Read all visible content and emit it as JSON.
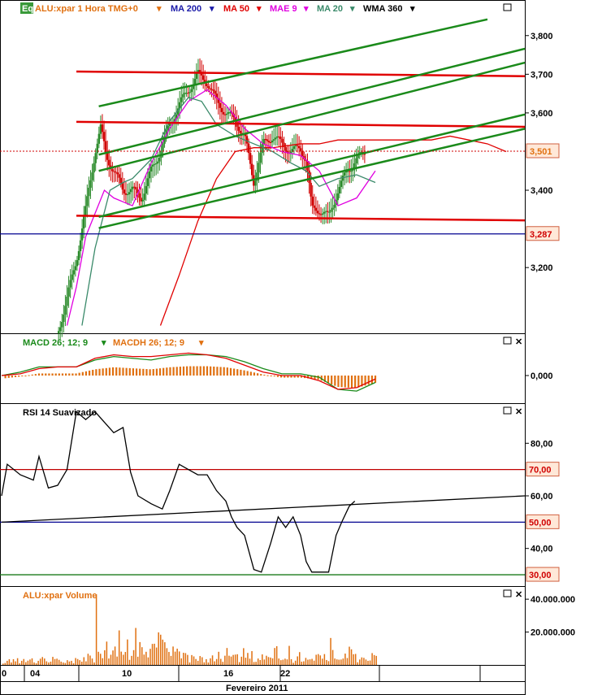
{
  "header": {
    "badge": "Eq",
    "symbol": "ALU:xpar 1 Hora TMG+0",
    "indicators": [
      {
        "label": "MA 200",
        "color": "#1a1aa8"
      },
      {
        "label": "MA 50",
        "color": "#e00000"
      },
      {
        "label": "MAE 9",
        "color": "#e000e0"
      },
      {
        "label": "MA 20",
        "color": "#3a8a6a"
      },
      {
        "label": "WMA 360",
        "color": "#000000"
      }
    ]
  },
  "panels": {
    "macd": {
      "labels": [
        "MACD 26; 12; 9",
        "MACDH 26; 12; 9"
      ],
      "colors": [
        "#1a8a1a",
        "#e07010"
      ]
    },
    "rsi": {
      "label": "RSI 14 Suavizado"
    },
    "volume": {
      "label": "ALU:xpar Volume"
    }
  },
  "colors": {
    "up": "#2a8a2a",
    "down": "#d00000",
    "histogram": "#e07010",
    "volume": "#e07010"
  },
  "chart_data": [
    {
      "type": "candlestick",
      "panel": "price",
      "ylim": [
        3.03,
        3.85
      ],
      "yticks": [
        "3,200",
        "3,400",
        "3,600",
        "3,700",
        "3,800"
      ],
      "price_tags": [
        "3,501",
        "3,287"
      ],
      "price_levels": [
        3.501,
        3.287
      ],
      "overlays": [
        {
          "name": "MA 50",
          "points": [
            [
              8.5,
              3.05
            ],
            [
              9.5,
              3.18
            ],
            [
              10.5,
              3.32
            ],
            [
              11.5,
              3.43
            ],
            [
              12.5,
              3.5
            ],
            [
              13.5,
              3.51
            ],
            [
              14.5,
              3.51
            ],
            [
              16,
              3.52
            ],
            [
              17,
              3.52
            ],
            [
              18,
              3.53
            ],
            [
              19,
              3.53
            ],
            [
              20,
              3.53
            ],
            [
              21,
              3.53
            ],
            [
              22,
              3.53
            ],
            [
              23,
              3.53
            ],
            [
              24,
              3.54
            ],
            [
              25,
              3.53
            ],
            [
              26,
              3.52
            ],
            [
              27,
              3.5
            ]
          ]
        },
        {
          "name": "MAE 9",
          "points": [
            [
              3.5,
              3.05
            ],
            [
              4,
              3.15
            ],
            [
              4.5,
              3.28
            ],
            [
              5.5,
              3.4
            ],
            [
              6,
              3.38
            ],
            [
              7,
              3.36
            ],
            [
              8,
              3.47
            ],
            [
              9,
              3.56
            ],
            [
              10,
              3.63
            ],
            [
              11,
              3.66
            ],
            [
              12,
              3.62
            ],
            [
              13,
              3.56
            ],
            [
              14,
              3.52
            ],
            [
              15,
              3.5
            ],
            [
              16,
              3.49
            ],
            [
              17,
              3.45
            ],
            [
              18,
              3.36
            ],
            [
              19,
              3.38
            ],
            [
              20,
              3.45
            ]
          ]
        },
        {
          "name": "MA 20",
          "points": [
            [
              4.3,
              3.05
            ],
            [
              5,
              3.25
            ],
            [
              5.8,
              3.4
            ],
            [
              6.5,
              3.42
            ],
            [
              7,
              3.43
            ],
            [
              8,
              3.48
            ],
            [
              9,
              3.58
            ],
            [
              10,
              3.64
            ],
            [
              10.7,
              3.63
            ],
            [
              11.5,
              3.57
            ],
            [
              12.5,
              3.54
            ],
            [
              13.5,
              3.52
            ],
            [
              14.5,
              3.5
            ],
            [
              15.5,
              3.47
            ],
            [
              16.3,
              3.45
            ],
            [
              17,
              3.41
            ],
            [
              18,
              3.43
            ],
            [
              19,
              3.44
            ],
            [
              20,
              3.42
            ]
          ]
        }
      ],
      "trendlines": [
        {
          "color": "red",
          "from": [
            4.0,
            3.707
          ],
          "to": [
            28,
            3.695
          ]
        },
        {
          "color": "red",
          "from": [
            4.0,
            3.577
          ],
          "to": [
            28,
            3.564
          ]
        },
        {
          "color": "red",
          "from": [
            4.0,
            3.334
          ],
          "to": [
            28,
            3.322
          ]
        },
        {
          "color": "green",
          "from": [
            5.2,
            3.617
          ],
          "to": [
            26,
            3.842
          ]
        },
        {
          "color": "green",
          "from": [
            5.2,
            3.492
          ],
          "to": [
            28,
            3.766
          ]
        },
        {
          "color": "green",
          "from": [
            5.2,
            3.45
          ],
          "to": [
            28,
            3.73
          ]
        },
        {
          "color": "green",
          "from": [
            5.2,
            3.331
          ],
          "to": [
            28,
            3.596
          ]
        },
        {
          "color": "green",
          "from": [
            5.2,
            3.302
          ],
          "to": [
            28,
            3.559
          ]
        }
      ]
    },
    {
      "type": "line",
      "panel": "macd",
      "ylim": [
        -0.16,
        0.16
      ],
      "yticks": [
        "0,000"
      ],
      "series": [
        {
          "name": "MACD 26; 12; 9",
          "points": [
            [
              0,
              0.0
            ],
            [
              1,
              0.02
            ],
            [
              2,
              0.05
            ],
            [
              3,
              0.05
            ],
            [
              4,
              0.05
            ],
            [
              5,
              0.09
            ],
            [
              6,
              0.11
            ],
            [
              7,
              0.1
            ],
            [
              8,
              0.09
            ],
            [
              9,
              0.11
            ],
            [
              10,
              0.12
            ],
            [
              11,
              0.12
            ],
            [
              12,
              0.11
            ],
            [
              13,
              0.08
            ],
            [
              14,
              0.04
            ],
            [
              15,
              0.01
            ],
            [
              16,
              0.01
            ],
            [
              17,
              -0.01
            ],
            [
              18,
              -0.08
            ],
            [
              19,
              -0.09
            ],
            [
              20,
              -0.04
            ]
          ]
        },
        {
          "name": "MACDH 26; 12; 9",
          "points": [
            [
              0,
              0.0
            ],
            [
              1,
              0.01
            ],
            [
              2,
              0.04
            ],
            [
              3,
              0.05
            ],
            [
              4,
              0.05
            ],
            [
              5,
              0.1
            ],
            [
              6,
              0.12
            ],
            [
              7,
              0.11
            ],
            [
              8,
              0.11
            ],
            [
              9,
              0.12
            ],
            [
              10,
              0.13
            ],
            [
              11,
              0.12
            ],
            [
              12,
              0.1
            ],
            [
              13,
              0.06
            ],
            [
              14,
              0.02
            ],
            [
              15,
              0.0
            ],
            [
              16,
              0.0
            ],
            [
              17,
              -0.03
            ],
            [
              18,
              -0.08
            ],
            [
              19,
              -0.07
            ],
            [
              20,
              -0.02
            ]
          ]
        }
      ]
    },
    {
      "type": "line",
      "panel": "rsi",
      "ylim": [
        26,
        94
      ],
      "yticks": [
        "40,00",
        "60,00",
        "80,00"
      ],
      "levels": [
        {
          "value": 70,
          "label": "70,00",
          "color": "#c00000"
        },
        {
          "value": 50,
          "label": "50,00",
          "color": "#000090"
        },
        {
          "value": 30,
          "label": "30,00",
          "color": "#1a7a1a"
        }
      ],
      "series": [
        {
          "name": "RSI 14 Suavizado",
          "points": [
            [
              0,
              60
            ],
            [
              0.3,
              72
            ],
            [
              1,
              68
            ],
            [
              1.7,
              66
            ],
            [
              2,
              75
            ],
            [
              2.5,
              63
            ],
            [
              3,
              64
            ],
            [
              3.5,
              70
            ],
            [
              4,
              92
            ],
            [
              4.5,
              89
            ],
            [
              5,
              92
            ],
            [
              5.5,
              88
            ],
            [
              6,
              84
            ],
            [
              6.5,
              86
            ],
            [
              6.9,
              69
            ],
            [
              7.3,
              60
            ],
            [
              8,
              57
            ],
            [
              8.6,
              55
            ],
            [
              9,
              62
            ],
            [
              9.5,
              72
            ],
            [
              10,
              70
            ],
            [
              10.5,
              68
            ],
            [
              11,
              68
            ],
            [
              11.5,
              62
            ],
            [
              12,
              58
            ],
            [
              12.3,
              52
            ],
            [
              12.6,
              48
            ],
            [
              13,
              45
            ],
            [
              13.5,
              32
            ],
            [
              13.9,
              31
            ],
            [
              14.4,
              42
            ],
            [
              14.8,
              52
            ],
            [
              15.2,
              48
            ],
            [
              15.6,
              52
            ],
            [
              16,
              45
            ],
            [
              16.3,
              35
            ],
            [
              16.6,
              31
            ],
            [
              17,
              31
            ],
            [
              17.5,
              31
            ],
            [
              17.9,
              45
            ],
            [
              18.2,
              50
            ],
            [
              18.6,
              56
            ],
            [
              18.9,
              58
            ]
          ]
        }
      ],
      "trendline": {
        "from": [
          0,
          50.0
        ],
        "to": [
          28,
          60.0
        ]
      }
    },
    {
      "type": "bar",
      "panel": "volume",
      "yticks": [
        "20.000.000",
        "40.000.000"
      ],
      "ylim": [
        0,
        46000000
      ],
      "values": [
        800000,
        1200000,
        2500000,
        3500000,
        1500000,
        3500000,
        2200000,
        4100000,
        1000000,
        2500000,
        3600000,
        1700000,
        2600000,
        3300000,
        4000000,
        1500000,
        1000000,
        2500000,
        3800000,
        4800000,
        3900000,
        2200000,
        1500000,
        2000000,
        4900000,
        3600000,
        3800000,
        3100000,
        2000000,
        1500000,
        1200000,
        2900000,
        2100000,
        2500000,
        1000000,
        4200000,
        3600000,
        2900000,
        2000000,
        4700000,
        2200000,
        6800000,
        5700000,
        3900000,
        1500000,
        43000000,
        8000000,
        6800000,
        4100000,
        8900000,
        14200000,
        3900000,
        6200000,
        8800000,
        11200000,
        5100000,
        21000000,
        8100000,
        6200000,
        7900000,
        15500000,
        3100000,
        5500000,
        9000000,
        22500000,
        5000000,
        13900000,
        10800000,
        6300000,
        8000000,
        4600000,
        9800000,
        12800000,
        12900000,
        10600000,
        19800000,
        18400000,
        15400000,
        13800000,
        10200000,
        7900000,
        5500000,
        11200000,
        8100000,
        9900000,
        8200000,
        4000000,
        7400000,
        7200000,
        6100000,
        1500000,
        6000000,
        5200000,
        3600000,
        2500000,
        5400000,
        4700000,
        1600000,
        3500000,
        1500000,
        4000000,
        5800000,
        2200000,
        3600000,
        8000000,
        3700000,
        1900000,
        5600000,
        10300000,
        5600000,
        5100000,
        6100000,
        6300000,
        6500000,
        1700000,
        5000000,
        10200000,
        4400000,
        7300000,
        3800000,
        8400000,
        1800000,
        1900000,
        3900000,
        3000000,
        6400000,
        3300000,
        5600000,
        4800000,
        4500000,
        4000000,
        10300000,
        11400000,
        3900000,
        2900000,
        3200000,
        3800000,
        3400000,
        11600000,
        3500000,
        1300000,
        2600000,
        5200000,
        7800000,
        2000000,
        2200000,
        4300000,
        3200000,
        3400000,
        3700000,
        2600000,
        6200000,
        6600000,
        5800000,
        3800000,
        6600000,
        3000000,
        2300000,
        16400000,
        9100000,
        3900000,
        3400000,
        3200000,
        3300000,
        3900000,
        6900000,
        4200000,
        11100000,
        9500000,
        6500000,
        6700000,
        1600000,
        3300000,
        4600000,
        4300000,
        3300000,
        2500000,
        2700000,
        7200000,
        6000000,
        5500000
      ]
    }
  ],
  "xaxis": {
    "labels": [
      "0",
      "04",
      "10",
      "16",
      "22"
    ],
    "label": "Fevereiro 2011"
  }
}
